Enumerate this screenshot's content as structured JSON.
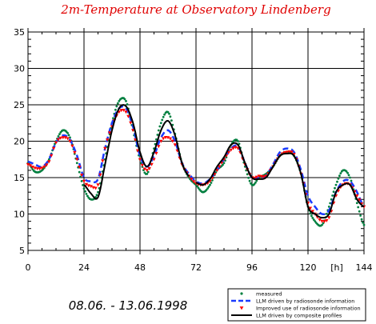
{
  "chart_data": {
    "type": "line",
    "title": "2m-Temperature at Observatory Lindenberg",
    "date_range": "08.06. - 13.06.1998",
    "x_unit": "[h]",
    "xlim": [
      0,
      144
    ],
    "ylim": [
      5,
      35
    ],
    "x_ticks": [
      0,
      24,
      48,
      72,
      96,
      120,
      144
    ],
    "y_ticks": [
      5,
      10,
      15,
      20,
      25,
      30,
      35
    ],
    "grid": true,
    "legend_position": "bottom-right",
    "series": [
      {
        "name": "measured",
        "style": "dots",
        "color": "#007f3f",
        "x": [
          0,
          3,
          6,
          9,
          12,
          15,
          18,
          21,
          24,
          27,
          30,
          33,
          36,
          39,
          42,
          45,
          48,
          51,
          54,
          57,
          60,
          63,
          66,
          69,
          72,
          75,
          78,
          81,
          84,
          87,
          90,
          93,
          96,
          99,
          102,
          105,
          108,
          111,
          114,
          117,
          120,
          123,
          126,
          129,
          132,
          135,
          138,
          141,
          144
        ],
        "y": [
          17.0,
          15.8,
          16.0,
          17.5,
          20.0,
          21.5,
          20.5,
          17.0,
          13.5,
          12.0,
          13.0,
          17.5,
          22.5,
          25.5,
          25.5,
          21.5,
          17.5,
          15.5,
          19.0,
          22.5,
          24.0,
          21.0,
          17.0,
          15.0,
          14.0,
          13.0,
          14.0,
          16.0,
          17.0,
          19.5,
          20.0,
          16.5,
          14.0,
          15.0,
          15.5,
          16.5,
          18.0,
          18.5,
          18.0,
          15.5,
          11.0,
          9.0,
          8.5,
          11.0,
          14.0,
          16.0,
          15.0,
          11.5,
          8.5
        ]
      },
      {
        "name": "LLM driven by radiosonde information",
        "style": "dashed",
        "color": "#1a3aff",
        "x": [
          0,
          3,
          6,
          9,
          12,
          15,
          18,
          21,
          24,
          27,
          30,
          33,
          36,
          39,
          42,
          45,
          48,
          51,
          54,
          57,
          60,
          63,
          66,
          69,
          72,
          75,
          78,
          81,
          84,
          87,
          90,
          93,
          96,
          99,
          102,
          105,
          108,
          111,
          114,
          117,
          120,
          123,
          126,
          129,
          132,
          135,
          138,
          141,
          144
        ],
        "y": [
          17.2,
          16.8,
          16.5,
          17.5,
          19.8,
          20.8,
          20.2,
          18.0,
          15.0,
          14.5,
          14.8,
          19.0,
          22.5,
          24.5,
          24.5,
          22.0,
          18.0,
          16.5,
          18.0,
          20.5,
          21.5,
          20.0,
          17.0,
          15.5,
          14.5,
          14.2,
          14.8,
          16.0,
          17.5,
          19.0,
          19.3,
          17.0,
          15.0,
          15.0,
          15.3,
          16.8,
          18.5,
          19.0,
          18.5,
          16.0,
          12.5,
          11.0,
          10.0,
          10.5,
          13.0,
          14.5,
          14.5,
          13.0,
          11.0
        ]
      },
      {
        "name": "Improved use of radiosonde information",
        "style": "triangles",
        "color": "#ff0000",
        "x": [
          0,
          3,
          6,
          9,
          12,
          15,
          18,
          21,
          24,
          27,
          30,
          33,
          36,
          39,
          42,
          45,
          48,
          51,
          54,
          57,
          60,
          63,
          66,
          69,
          72,
          75,
          78,
          81,
          84,
          87,
          90,
          93,
          96,
          99,
          102,
          105,
          108,
          111,
          114,
          117,
          120,
          123,
          126,
          129,
          132,
          135,
          138,
          141,
          144
        ],
        "y": [
          16.8,
          16.3,
          16.3,
          17.2,
          19.8,
          20.5,
          20.0,
          17.5,
          14.5,
          13.8,
          14.0,
          19.0,
          22.0,
          24.0,
          24.0,
          21.5,
          17.5,
          16.0,
          17.5,
          20.0,
          20.5,
          19.5,
          16.8,
          15.2,
          14.2,
          14.0,
          14.5,
          16.0,
          17.5,
          18.8,
          19.0,
          16.8,
          15.0,
          15.2,
          15.2,
          16.5,
          18.0,
          18.5,
          18.2,
          15.5,
          11.5,
          10.0,
          9.0,
          9.5,
          12.5,
          14.0,
          14.0,
          12.5,
          11.0
        ]
      },
      {
        "name": "LLM driven by composite profiles",
        "style": "solid",
        "color": "#000000",
        "x": [
          72,
          75,
          78,
          81,
          84,
          87,
          90,
          93,
          96,
          99,
          102,
          105,
          108,
          111,
          114,
          117,
          120,
          123,
          126,
          129,
          132,
          135,
          138,
          141,
          144
        ],
        "y": [
          14.3,
          14.0,
          14.8,
          16.5,
          17.8,
          19.5,
          19.5,
          17.0,
          15.0,
          14.8,
          15.0,
          16.5,
          18.0,
          18.3,
          18.0,
          15.5,
          11.0,
          10.0,
          9.5,
          10.0,
          13.0,
          14.0,
          14.0,
          12.0,
          11.0
        ]
      },
      {
        "name": "",
        "style": "solid",
        "color": "#000000",
        "x": [
          24,
          27,
          30,
          33,
          36,
          39,
          42,
          45,
          48,
          51,
          54,
          57,
          60,
          63,
          66,
          69
        ],
        "y": [
          14.0,
          12.8,
          12.3,
          16.8,
          21.5,
          24.5,
          24.8,
          22.5,
          18.5,
          16.5,
          18.5,
          21.5,
          22.8,
          20.8,
          17.0,
          15.2
        ]
      }
    ]
  }
}
